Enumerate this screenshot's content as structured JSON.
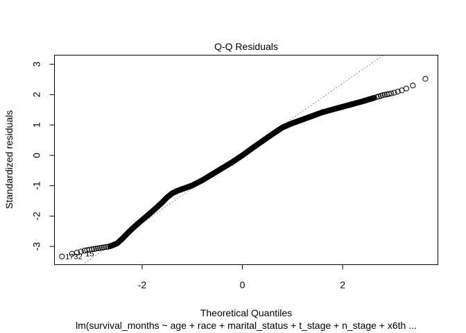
{
  "chart_data": {
    "type": "scatter",
    "title": "Q-Q Residuals",
    "xlabel": "Theoretical Quantiles",
    "ylabel": "Standardized residuals",
    "subtitle": "lm(survival_months ~ age + race + marital_status + t_stage + n_stage + x6th ...",
    "xlim": [
      -3.75,
      3.9
    ],
    "ylim": [
      -3.6,
      3.3
    ],
    "x_ticks": [
      -2,
      0,
      2
    ],
    "x_tick_labels": [
      "-2",
      "0",
      "2"
    ],
    "y_ticks": [
      -3,
      -2,
      -1,
      0,
      1,
      2,
      3
    ],
    "y_tick_labels": [
      "-3",
      "-2",
      "-1",
      "0",
      "1",
      "2",
      "3"
    ],
    "grid": false,
    "reference_line": {
      "style": "dotted",
      "intercept": 0.07,
      "slope": 1.15
    },
    "outlier_labels": [
      {
        "text": "1732",
        "x": -3.6,
        "y": -3.33
      },
      {
        "text": "15",
        "x": -3.2,
        "y": -3.23
      }
    ],
    "curve_knots": {
      "x": [
        -3.6,
        -3.4,
        -3.25,
        -3.1,
        -2.95,
        -2.8,
        -2.65,
        -2.5,
        -2.4,
        -2.3,
        -2.2,
        -2.1,
        -2.0,
        -1.8,
        -1.6,
        -1.5,
        -1.4,
        -1.3,
        -1.2,
        -1.0,
        -0.8,
        -0.6,
        -0.4,
        -0.2,
        0.0,
        0.2,
        0.4,
        0.6,
        0.8,
        1.0,
        1.2,
        1.4,
        1.6,
        1.8,
        2.0,
        2.2,
        2.4,
        2.6,
        2.8,
        3.0,
        3.2,
        3.4,
        3.65
      ],
      "y": [
        -3.33,
        -3.24,
        -3.18,
        -3.12,
        -3.08,
        -3.04,
        -3.0,
        -2.9,
        -2.75,
        -2.58,
        -2.42,
        -2.27,
        -2.13,
        -1.85,
        -1.55,
        -1.38,
        -1.25,
        -1.17,
        -1.11,
        -0.99,
        -0.82,
        -0.62,
        -0.42,
        -0.22,
        0.0,
        0.24,
        0.47,
        0.7,
        0.92,
        1.06,
        1.18,
        1.3,
        1.42,
        1.51,
        1.6,
        1.69,
        1.78,
        1.88,
        1.98,
        2.05,
        2.15,
        2.3,
        2.52
      ]
    }
  }
}
